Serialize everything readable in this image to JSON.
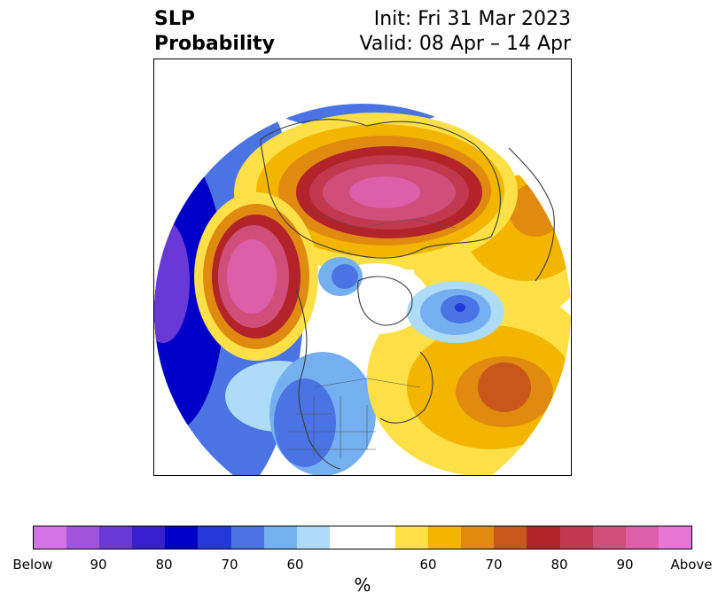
{
  "title": {
    "left_line1": "SLP",
    "left_line2": "Probability",
    "right_line1": "Init: Fri 31 Mar 2023",
    "right_line2": "Valid: 08 Apr – 14 Apr"
  },
  "colorbar": {
    "colors": [
      "#d473e6",
      "#a054dd",
      "#6a38d6",
      "#3a1fd0",
      "#0000c8",
      "#2438dc",
      "#4a74e4",
      "#74aff0",
      "#aedcf8",
      "#ffffff",
      "#fde047",
      "#f3b500",
      "#e08a10",
      "#c9561a",
      "#b2232a",
      "#c2384e",
      "#cf4e7a",
      "#dd5ea9",
      "#e676d8"
    ],
    "tick_labels": [
      "Below",
      "90",
      "80",
      "70",
      "60",
      "60",
      "70",
      "80",
      "90",
      "Above"
    ],
    "unit": "%"
  },
  "map": {
    "projection": "north-polar-stereographic",
    "field": "SLP probability",
    "features": [
      "coastlines",
      "country-borders",
      "state-borders"
    ]
  }
}
